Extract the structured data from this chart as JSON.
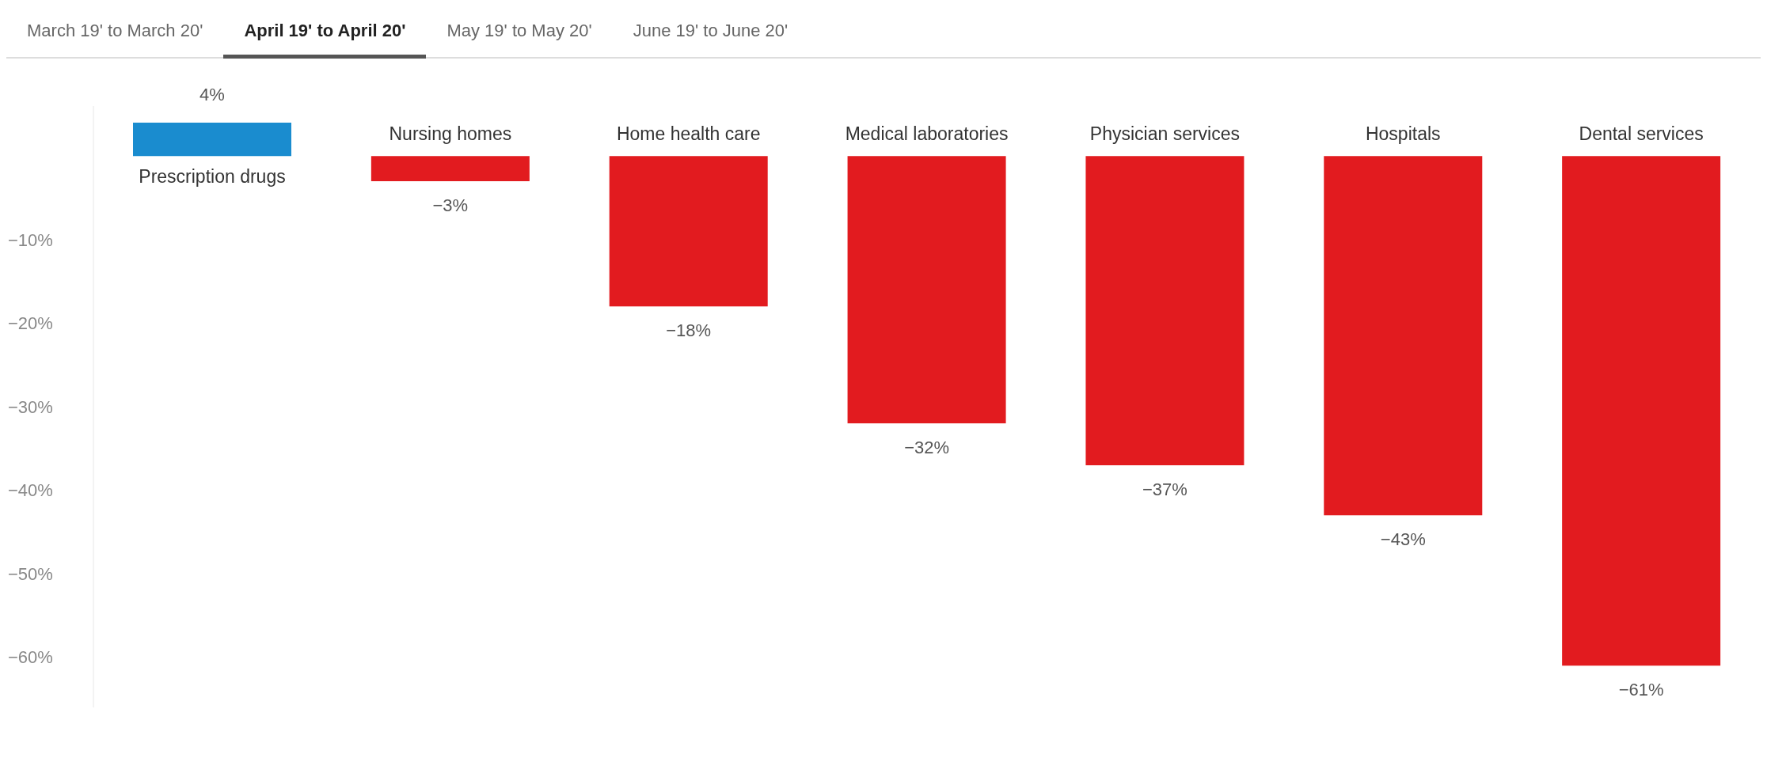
{
  "chart_data": {
    "type": "bar",
    "annotations": [
      "March 19' to March 20'",
      "April 19' to April 20'",
      "May 19' to May 20'",
      "June 19' to June 20'"
    ],
    "categories": [
      "Prescription drugs",
      "Nursing homes",
      "Home health care",
      "Medical laboratories",
      "Physician services",
      "Hospitals",
      "Dental services"
    ],
    "values": [
      4,
      -3,
      -18,
      -32,
      -37,
      -43,
      -61
    ],
    "colors": [
      "#1a8ccf",
      "#e21b1f",
      "#e21b1f",
      "#e21b1f",
      "#e21b1f",
      "#e21b1f",
      "#e21b1f"
    ],
    "value_labels": [
      "4%",
      "−3%",
      "−18%",
      "−32%",
      "−37%",
      "−43%",
      "−61%"
    ],
    "ylim": [
      -66,
      6
    ],
    "yticks": [
      {
        "value": -10,
        "label": "−10%"
      },
      {
        "value": -20,
        "label": "−20%"
      },
      {
        "value": -30,
        "label": "−30%"
      },
      {
        "value": -40,
        "label": "−40%"
      },
      {
        "value": -50,
        "label": "−50%"
      },
      {
        "value": -60,
        "label": "−60%"
      }
    ],
    "grid": false,
    "legend": false
  }
}
